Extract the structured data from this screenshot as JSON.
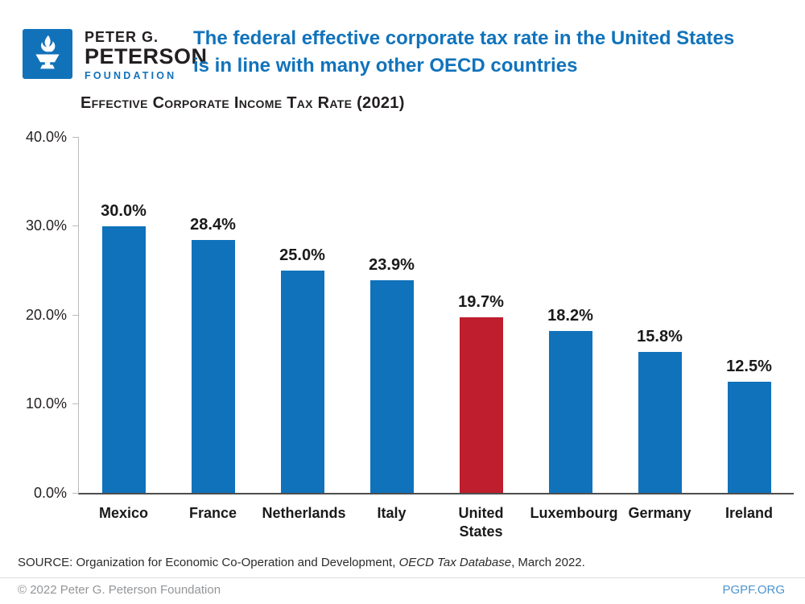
{
  "colors": {
    "logo_blue": "#1172BA",
    "title_blue": "#1173BB",
    "axis_gray": "#BBBBBB",
    "xaxis_dark": "#4D4D4D",
    "text_dark": "#1A1A1A",
    "footer_gray": "#939598",
    "pgpf_blue": "#4D94CC"
  },
  "logo": {
    "icon": "torch-icon",
    "line1": "PETER G.",
    "line2": "PETERSON",
    "line3": "FOUNDATION"
  },
  "header": {
    "title_line1": "The federal effective corporate tax rate in the United States",
    "title_line2": "is in line with many other OECD countries"
  },
  "chart_data": {
    "type": "bar",
    "title": "Effective Corporate Income Tax Rate (2021)",
    "categories": [
      "Mexico",
      "France",
      "Netherlands",
      "Italy",
      "United States",
      "Luxembourg",
      "Germany",
      "Ireland"
    ],
    "values": [
      30.0,
      28.4,
      25.0,
      23.9,
      19.7,
      18.2,
      15.8,
      12.5
    ],
    "value_labels": [
      "30.0%",
      "28.4%",
      "25.0%",
      "23.9%",
      "19.7%",
      "18.2%",
      "15.8%",
      "12.5%"
    ],
    "highlight_index": 4,
    "highlight_category": "United States",
    "bar_color": "#1072BA",
    "highlight_color": "#BE1E2D",
    "xlabel": "",
    "ylabel": "",
    "ylim": [
      0,
      40
    ],
    "yticks": [
      "0.0%",
      "10.0%",
      "20.0%",
      "30.0%",
      "40.0%"
    ],
    "grid": false,
    "legend": null
  },
  "source": {
    "prefix": "SOURCE: Organization for Economic Co-Operation and Development, ",
    "italic": "OECD Tax Database",
    "suffix": ", March 2022."
  },
  "footer": {
    "copyright": "© 2022 Peter G. Peterson Foundation",
    "site": "PGPF.ORG"
  }
}
